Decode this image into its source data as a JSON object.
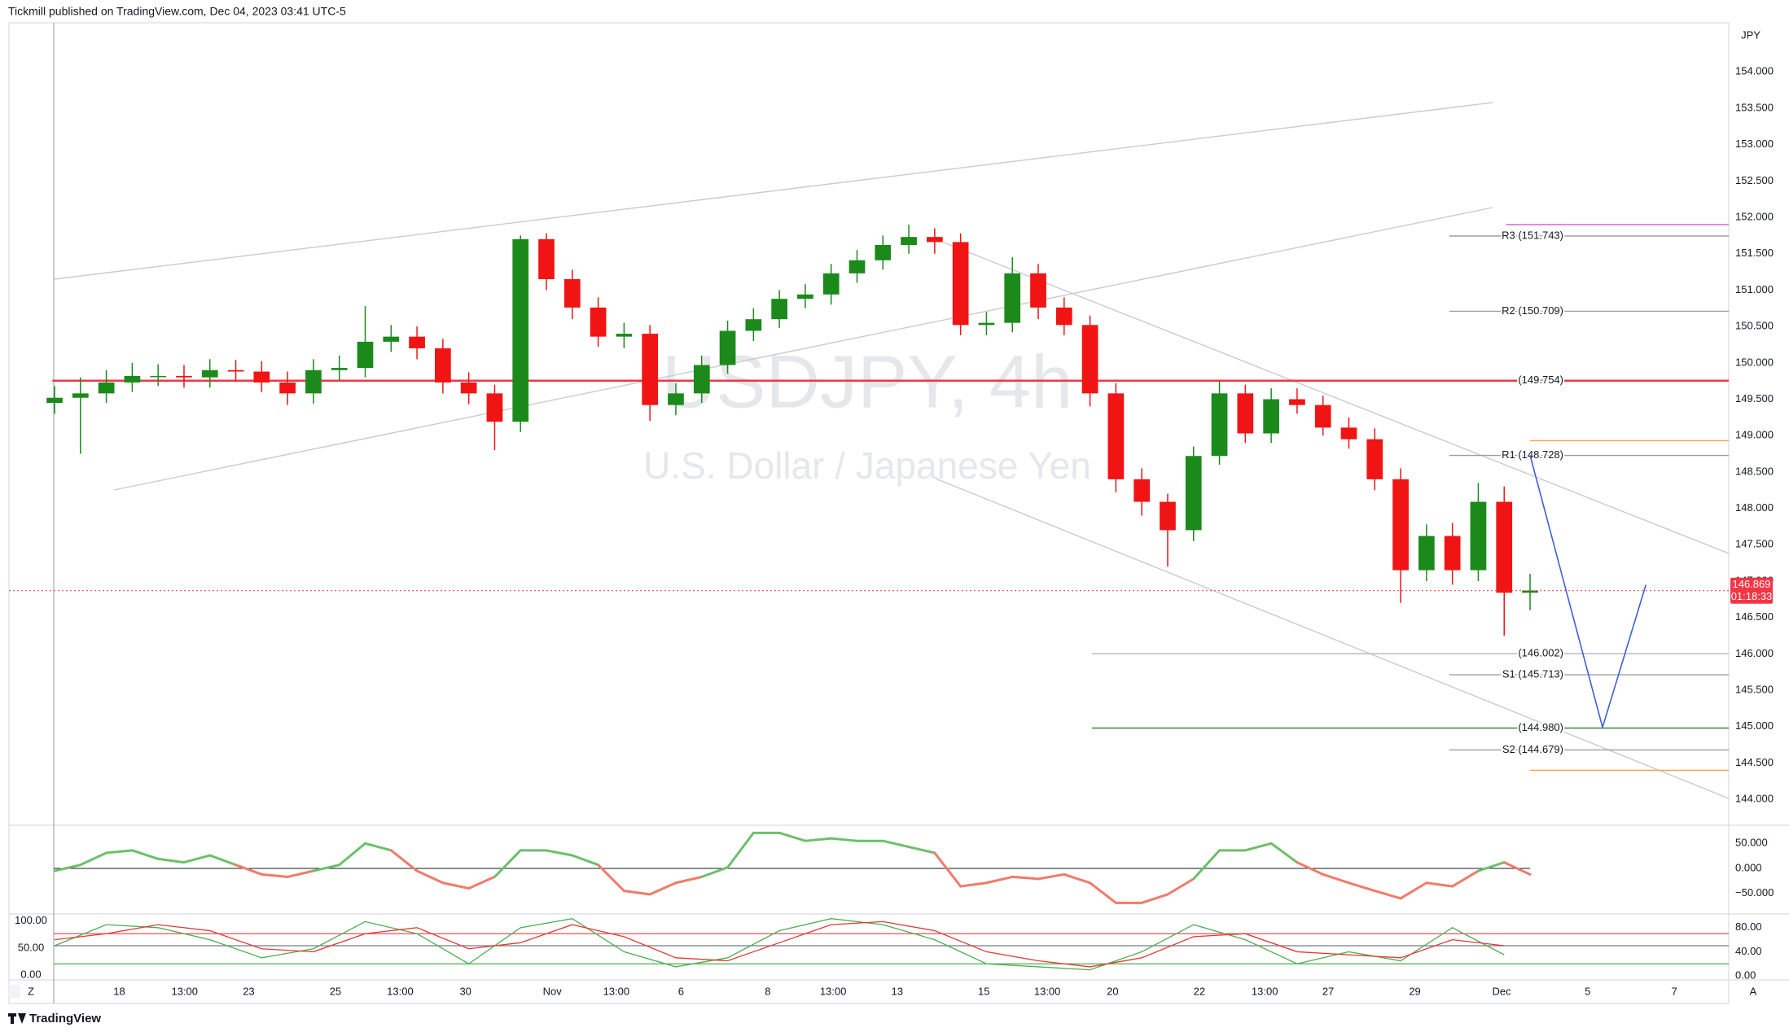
{
  "header": {
    "text": "Tickmill published on TradingView.com, Dec 04, 2023 03:41 UTC-5"
  },
  "footer": {
    "logo": "TradingView",
    "left_button": "Z",
    "right_button": "A"
  },
  "chart_data": [
    {
      "type": "candlestick",
      "title": "USDJPY, 4h",
      "subtitle": "U.S. Dollar / Japanese Yen",
      "y_axis_label": "JPY",
      "up_color": "#1b8a1b",
      "down_color": "#f01414",
      "x": [
        0,
        4,
        8,
        12,
        16,
        20,
        24,
        28,
        32,
        36,
        40,
        44,
        48,
        52,
        56,
        60,
        64,
        68,
        72,
        76,
        80,
        84,
        88,
        92,
        96,
        100,
        104,
        108,
        112,
        116,
        120,
        124,
        128,
        132,
        136,
        140,
        144,
        148,
        152,
        156,
        160,
        164,
        168,
        172,
        176,
        180,
        184,
        188,
        192,
        196,
        200,
        204,
        208,
        212,
        216,
        220,
        224,
        228
      ],
      "open": [
        149.45,
        149.52,
        149.58,
        149.73,
        149.82,
        149.82,
        149.8,
        149.9,
        149.88,
        149.73,
        149.58,
        149.9,
        149.93,
        150.29,
        150.36,
        150.2,
        149.73,
        149.58,
        149.19,
        151.7,
        151.15,
        150.76,
        150.36,
        150.4,
        149.42,
        149.58,
        149.97,
        150.44,
        150.6,
        150.88,
        150.94,
        151.23,
        151.41,
        151.62,
        151.73,
        151.66,
        150.52,
        150.55,
        151.23,
        150.76,
        150.52,
        149.58,
        148.4,
        148.09,
        147.7,
        148.72,
        149.58,
        149.03,
        149.5,
        149.42,
        149.11,
        148.95,
        148.4,
        147.15,
        147.62,
        147.15,
        148.09,
        146.84
      ],
      "high": [
        149.68,
        149.8,
        149.9,
        150.0,
        149.98,
        149.97,
        150.05,
        150.04,
        150.02,
        149.88,
        150.05,
        150.1,
        150.78,
        150.52,
        150.5,
        150.33,
        149.87,
        149.7,
        151.75,
        151.78,
        151.28,
        150.9,
        150.55,
        150.52,
        149.72,
        150.1,
        150.58,
        150.75,
        151.0,
        151.08,
        151.36,
        151.55,
        151.75,
        151.9,
        151.85,
        151.78,
        150.7,
        151.45,
        151.36,
        150.9,
        150.65,
        149.72,
        148.55,
        148.2,
        148.85,
        149.75,
        149.7,
        149.65,
        149.65,
        149.55,
        149.25,
        149.1,
        148.55,
        147.78,
        147.8,
        148.35,
        148.3,
        147.1
      ],
      "low": [
        149.3,
        148.75,
        149.45,
        149.6,
        149.68,
        149.66,
        149.66,
        149.74,
        149.6,
        149.42,
        149.44,
        149.76,
        149.8,
        150.15,
        150.05,
        149.58,
        149.43,
        148.8,
        149.05,
        151.0,
        150.6,
        150.22,
        150.2,
        149.2,
        149.28,
        149.45,
        149.85,
        150.3,
        150.48,
        150.75,
        150.8,
        151.1,
        151.28,
        151.5,
        151.5,
        150.38,
        150.38,
        150.42,
        150.6,
        150.38,
        149.4,
        148.22,
        147.9,
        147.2,
        147.55,
        148.6,
        148.9,
        148.9,
        149.3,
        149.0,
        148.82,
        148.25,
        146.7,
        147.0,
        146.95,
        147.0,
        146.25,
        146.6
      ],
      "close": [
        149.52,
        149.58,
        149.73,
        149.82,
        149.82,
        149.8,
        149.9,
        149.88,
        149.73,
        149.58,
        149.9,
        149.93,
        150.29,
        150.36,
        150.2,
        149.73,
        149.58,
        149.19,
        151.7,
        151.15,
        150.76,
        150.36,
        150.4,
        149.42,
        149.58,
        149.97,
        150.44,
        150.6,
        150.88,
        150.94,
        151.23,
        151.41,
        151.62,
        151.73,
        151.66,
        150.52,
        150.55,
        151.23,
        150.76,
        150.52,
        149.58,
        148.4,
        148.09,
        147.7,
        148.72,
        149.58,
        149.03,
        149.5,
        149.42,
        149.11,
        148.95,
        148.4,
        147.15,
        147.62,
        147.15,
        148.09,
        146.84,
        146.87
      ],
      "xlim": [
        -7.05,
        258.7
      ],
      "xticks": [
        {
          "value": 10,
          "label": "18"
        },
        {
          "value": 20.1,
          "label": "13:00"
        },
        {
          "value": 30,
          "label": "23"
        },
        {
          "value": 43.4,
          "label": "25"
        },
        {
          "value": 53.4,
          "label": "13:00"
        },
        {
          "value": 63.5,
          "label": "30"
        },
        {
          "value": 76.9,
          "label": "Nov"
        },
        {
          "value": 86.8,
          "label": "13:00"
        },
        {
          "value": 96.8,
          "label": "6"
        },
        {
          "value": 110.2,
          "label": "8"
        },
        {
          "value": 120.3,
          "label": "13:00"
        },
        {
          "value": 130.2,
          "label": "13"
        },
        {
          "value": 143.6,
          "label": "15"
        },
        {
          "value": 153.4,
          "label": "13:00"
        },
        {
          "value": 163.5,
          "label": "20"
        },
        {
          "value": 176.9,
          "label": "22"
        },
        {
          "value": 187,
          "label": "13:00"
        },
        {
          "value": 196.8,
          "label": "27"
        },
        {
          "value": 210.2,
          "label": "29"
        },
        {
          "value": 223.6,
          "label": "Dec"
        },
        {
          "value": 236.9,
          "label": "5"
        },
        {
          "value": 250.3,
          "label": "7"
        }
      ],
      "ylim": [
        143.655,
        154.674
      ],
      "yticks": [
        {
          "value": 154,
          "label": "154.000"
        },
        {
          "value": 153.5,
          "label": "153.500"
        },
        {
          "value": 153,
          "label": "153.000"
        },
        {
          "value": 152.5,
          "label": "152.500"
        },
        {
          "value": 152,
          "label": "152.000"
        },
        {
          "value": 151.5,
          "label": "151.500"
        },
        {
          "value": 151,
          "label": "151.000"
        },
        {
          "value": 150.5,
          "label": "150.500"
        },
        {
          "value": 150,
          "label": "150.000"
        },
        {
          "value": 149.5,
          "label": "149.500"
        },
        {
          "value": 149,
          "label": "149.000"
        },
        {
          "value": 148.5,
          "label": "148.500"
        },
        {
          "value": 148,
          "label": "148.000"
        },
        {
          "value": 147.5,
          "label": "147.500"
        },
        {
          "value": 147,
          "label": "147.000"
        },
        {
          "value": 146.5,
          "label": "146.500"
        },
        {
          "value": 146,
          "label": "146.000"
        },
        {
          "value": 145.5,
          "label": "145.500"
        },
        {
          "value": 145,
          "label": "145.000"
        },
        {
          "value": 144.5,
          "label": "144.500"
        },
        {
          "value": 144,
          "label": "144.000"
        }
      ],
      "levels": [
        {
          "value": 151.9,
          "color": "#d45cd4",
          "from_x": 224.3
        },
        {
          "value": 151.743,
          "label": "R3 (151.743)",
          "color": "#9e9e9e",
          "from_x": 215.5
        },
        {
          "value": 150.709,
          "label": "R2 (150.709)",
          "color": "#9e9e9e",
          "from_x": 215.5
        },
        {
          "value": 149.754,
          "label": "(149.754)",
          "color": "#f23645",
          "from_x": -0.35
        },
        {
          "value": 148.93,
          "color": "#f0a830",
          "from_x": 228
        },
        {
          "value": 148.728,
          "label": "R1 (148.728)",
          "color": "#9e9e9e",
          "from_x": 215.5
        },
        {
          "value": 146.002,
          "label": "(146.002)",
          "color": "#b2b5be",
          "from_x": 160.3
        },
        {
          "value": 145.713,
          "label": "S1 (145.713)",
          "color": "#9e9e9e",
          "from_x": 215.5
        },
        {
          "value": 144.98,
          "label": "(144.980)",
          "color": "#2e7d32",
          "from_x": 160.3
        },
        {
          "value": 144.679,
          "label": "S2 (144.679)",
          "color": "#9e9e9e",
          "from_x": 215.5
        },
        {
          "value": 144.4,
          "color": "#f0a830",
          "from_x": 228
        }
      ],
      "last_price": {
        "value": 146.869,
        "label": "146.869",
        "countdown": "01:18:33",
        "color": "#f23645"
      },
      "projection": {
        "x": [
          228,
          239.2,
          245.9
        ],
        "y": [
          148.73,
          144.99,
          146.95
        ],
        "color": "#3c5fd6"
      }
    },
    {
      "type": "line",
      "xlim": [
        -7.05,
        258.7
      ],
      "x": [
        0,
        4,
        8,
        12,
        16,
        20,
        24,
        28,
        32,
        36,
        40,
        44,
        48,
        52,
        56,
        60,
        64,
        68,
        72,
        76,
        80,
        84,
        88,
        92,
        96,
        100,
        104,
        108,
        112,
        116,
        120,
        124,
        128,
        132,
        136,
        140,
        144,
        148,
        152,
        156,
        160,
        164,
        168,
        172,
        176,
        180,
        184,
        188,
        192,
        196,
        200,
        204,
        208,
        212,
        216,
        220,
        224,
        228
      ],
      "values": [
        -5,
        7,
        31,
        36,
        19,
        12,
        26,
        7,
        -12,
        -17,
        -5,
        7,
        50,
        36,
        -5,
        -29,
        -40,
        -17,
        36,
        36,
        26,
        7,
        -45,
        -52,
        -29,
        -17,
        2,
        71,
        71,
        55,
        60,
        55,
        55,
        43,
        31,
        -36,
        -29,
        -17,
        -21,
        -12,
        -29,
        -69,
        -69,
        -52,
        -21,
        36,
        36,
        50,
        12,
        -12,
        -29,
        -45,
        -60,
        -29,
        -36,
        -5,
        12,
        -12
      ],
      "baseline": 0,
      "positive_color": "#6cc06a",
      "negative_color": "#f07b6a",
      "ylim": [
        -88,
        83
      ],
      "yticks": [
        {
          "value": 50,
          "label": "50.000"
        },
        {
          "value": 0,
          "label": "0.000"
        },
        {
          "value": -50,
          "label": "−50.000"
        }
      ]
    },
    {
      "type": "line",
      "xlim": [
        -7.05,
        258.7
      ],
      "x": [
        0,
        8,
        16,
        24,
        32,
        40,
        48,
        56,
        64,
        72,
        80,
        88,
        96,
        104,
        112,
        120,
        128,
        136,
        144,
        152,
        160,
        168,
        176,
        184,
        192,
        200,
        208,
        216,
        224
      ],
      "series": [
        {
          "color": "#4caf50",
          "values": [
            50,
            85,
            80,
            60,
            30,
            45,
            90,
            70,
            20,
            80,
            95,
            40,
            15,
            30,
            75,
            95,
            85,
            60,
            20,
            15,
            10,
            40,
            85,
            60,
            20,
            40,
            25,
            80,
            35
          ]
        },
        {
          "color": "#e53935",
          "values": [
            60,
            70,
            85,
            75,
            45,
            40,
            70,
            80,
            45,
            55,
            85,
            65,
            30,
            25,
            55,
            85,
            90,
            75,
            40,
            25,
            15,
            30,
            65,
            70,
            40,
            35,
            30,
            60,
            50
          ]
        }
      ],
      "hlines": [
        {
          "value": 70,
          "color": "#f23645"
        },
        {
          "value": 50,
          "color": "#787b86"
        },
        {
          "value": 20,
          "color": "#4caf50"
        }
      ],
      "ylim": [
        -4,
        100
      ],
      "yticks": [
        {
          "value": 80,
          "label": "80.00"
        },
        {
          "value": 40,
          "label": "40.00"
        },
        {
          "value": 0,
          "label": "0.00"
        }
      ],
      "y2lim": [
        -6,
        110
      ],
      "y2ticks": [
        {
          "value": 100,
          "label": "100.00"
        },
        {
          "value": 50,
          "label": "50.00"
        },
        {
          "value": 0,
          "label": "0.00"
        }
      ]
    }
  ]
}
